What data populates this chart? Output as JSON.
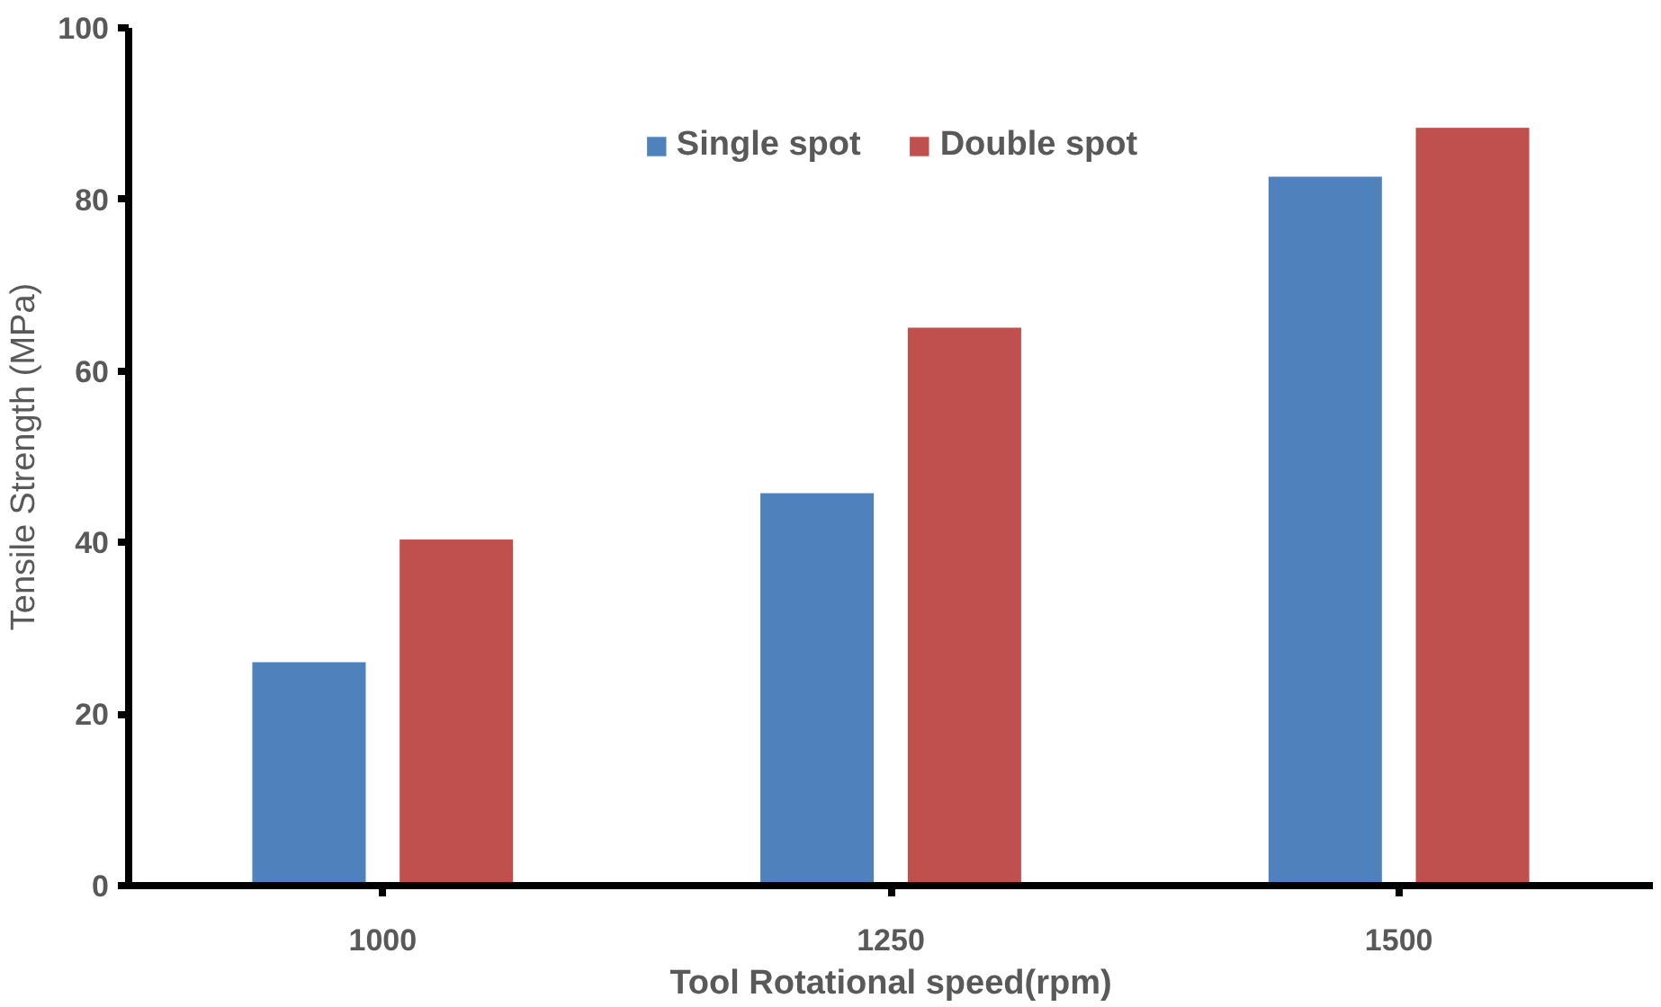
{
  "chart_data": {
    "type": "bar",
    "xlabel": "Tool Rotational speed(rpm)",
    "ylabel": "Tensile Strength (MPa)",
    "categories": [
      "1000",
      "1250",
      "1500"
    ],
    "series": [
      {
        "name": "Single spot",
        "color": "#4f81bd",
        "values": [
          26.1,
          45.8,
          82.7
        ]
      },
      {
        "name": "Double spot",
        "color": "#c0504d",
        "values": [
          40.4,
          65.1,
          88.4
        ]
      }
    ],
    "ylim": [
      0,
      100
    ],
    "yticks": [
      0,
      20,
      40,
      60,
      80,
      100
    ],
    "legend": "top"
  }
}
